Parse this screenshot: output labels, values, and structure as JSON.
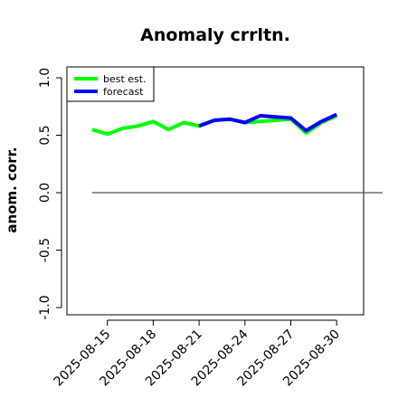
{
  "chart_data": {
    "type": "line",
    "title": "Anomaly crrltn.",
    "xlabel": "",
    "ylabel": "anom. corr.",
    "ylim": [
      -1.0,
      1.0
    ],
    "yticks": [
      "-1.0",
      "-0.5",
      "0.0",
      "0.5",
      "1.0"
    ],
    "x": [
      "2025-08-14",
      "2025-08-15",
      "2025-08-16",
      "2025-08-17",
      "2025-08-18",
      "2025-08-19",
      "2025-08-20",
      "2025-08-21",
      "2025-08-22",
      "2025-08-23",
      "2025-08-24",
      "2025-08-25",
      "2025-08-26",
      "2025-08-27",
      "2025-08-28",
      "2025-08-29",
      "2025-08-30"
    ],
    "xticks": [
      {
        "label": "2025-08-15",
        "color": "#000000"
      },
      {
        "label": "2025-08-18",
        "color": "#000000"
      },
      {
        "label": "2025-08-21",
        "color": "#228b22"
      },
      {
        "label": "2025-08-24",
        "color": "#000000"
      },
      {
        "label": "2025-08-27",
        "color": "#000000"
      },
      {
        "label": "2025-08-30",
        "color": "#000000"
      }
    ],
    "series": [
      {
        "name": "best est.",
        "color": "#00ff00",
        "x": [
          "2025-08-14",
          "2025-08-15",
          "2025-08-16",
          "2025-08-17",
          "2025-08-18",
          "2025-08-19",
          "2025-08-20",
          "2025-08-21",
          "2025-08-22",
          "2025-08-23",
          "2025-08-24",
          "2025-08-25",
          "2025-08-26",
          "2025-08-27",
          "2025-08-28",
          "2025-08-29",
          "2025-08-30"
        ],
        "values": [
          0.55,
          0.51,
          0.56,
          0.58,
          0.62,
          0.55,
          0.61,
          0.58,
          0.63,
          0.64,
          0.61,
          0.62,
          0.63,
          0.64,
          0.52,
          0.61,
          0.67
        ]
      },
      {
        "name": "forecast",
        "color": "#0000ff",
        "x": [
          "2025-08-21",
          "2025-08-22",
          "2025-08-23",
          "2025-08-24",
          "2025-08-25",
          "2025-08-26",
          "2025-08-27",
          "2025-08-28",
          "2025-08-29",
          "2025-08-30"
        ],
        "values": [
          0.58,
          0.63,
          0.64,
          0.61,
          0.67,
          0.66,
          0.65,
          0.54,
          0.62,
          0.68
        ]
      }
    ],
    "reference_line": {
      "y": 0.0,
      "x_start": "2025-08-14",
      "x_end": "2025-09-02",
      "color": "#555555"
    },
    "legend": {
      "position": "top-left"
    },
    "grid": false
  }
}
